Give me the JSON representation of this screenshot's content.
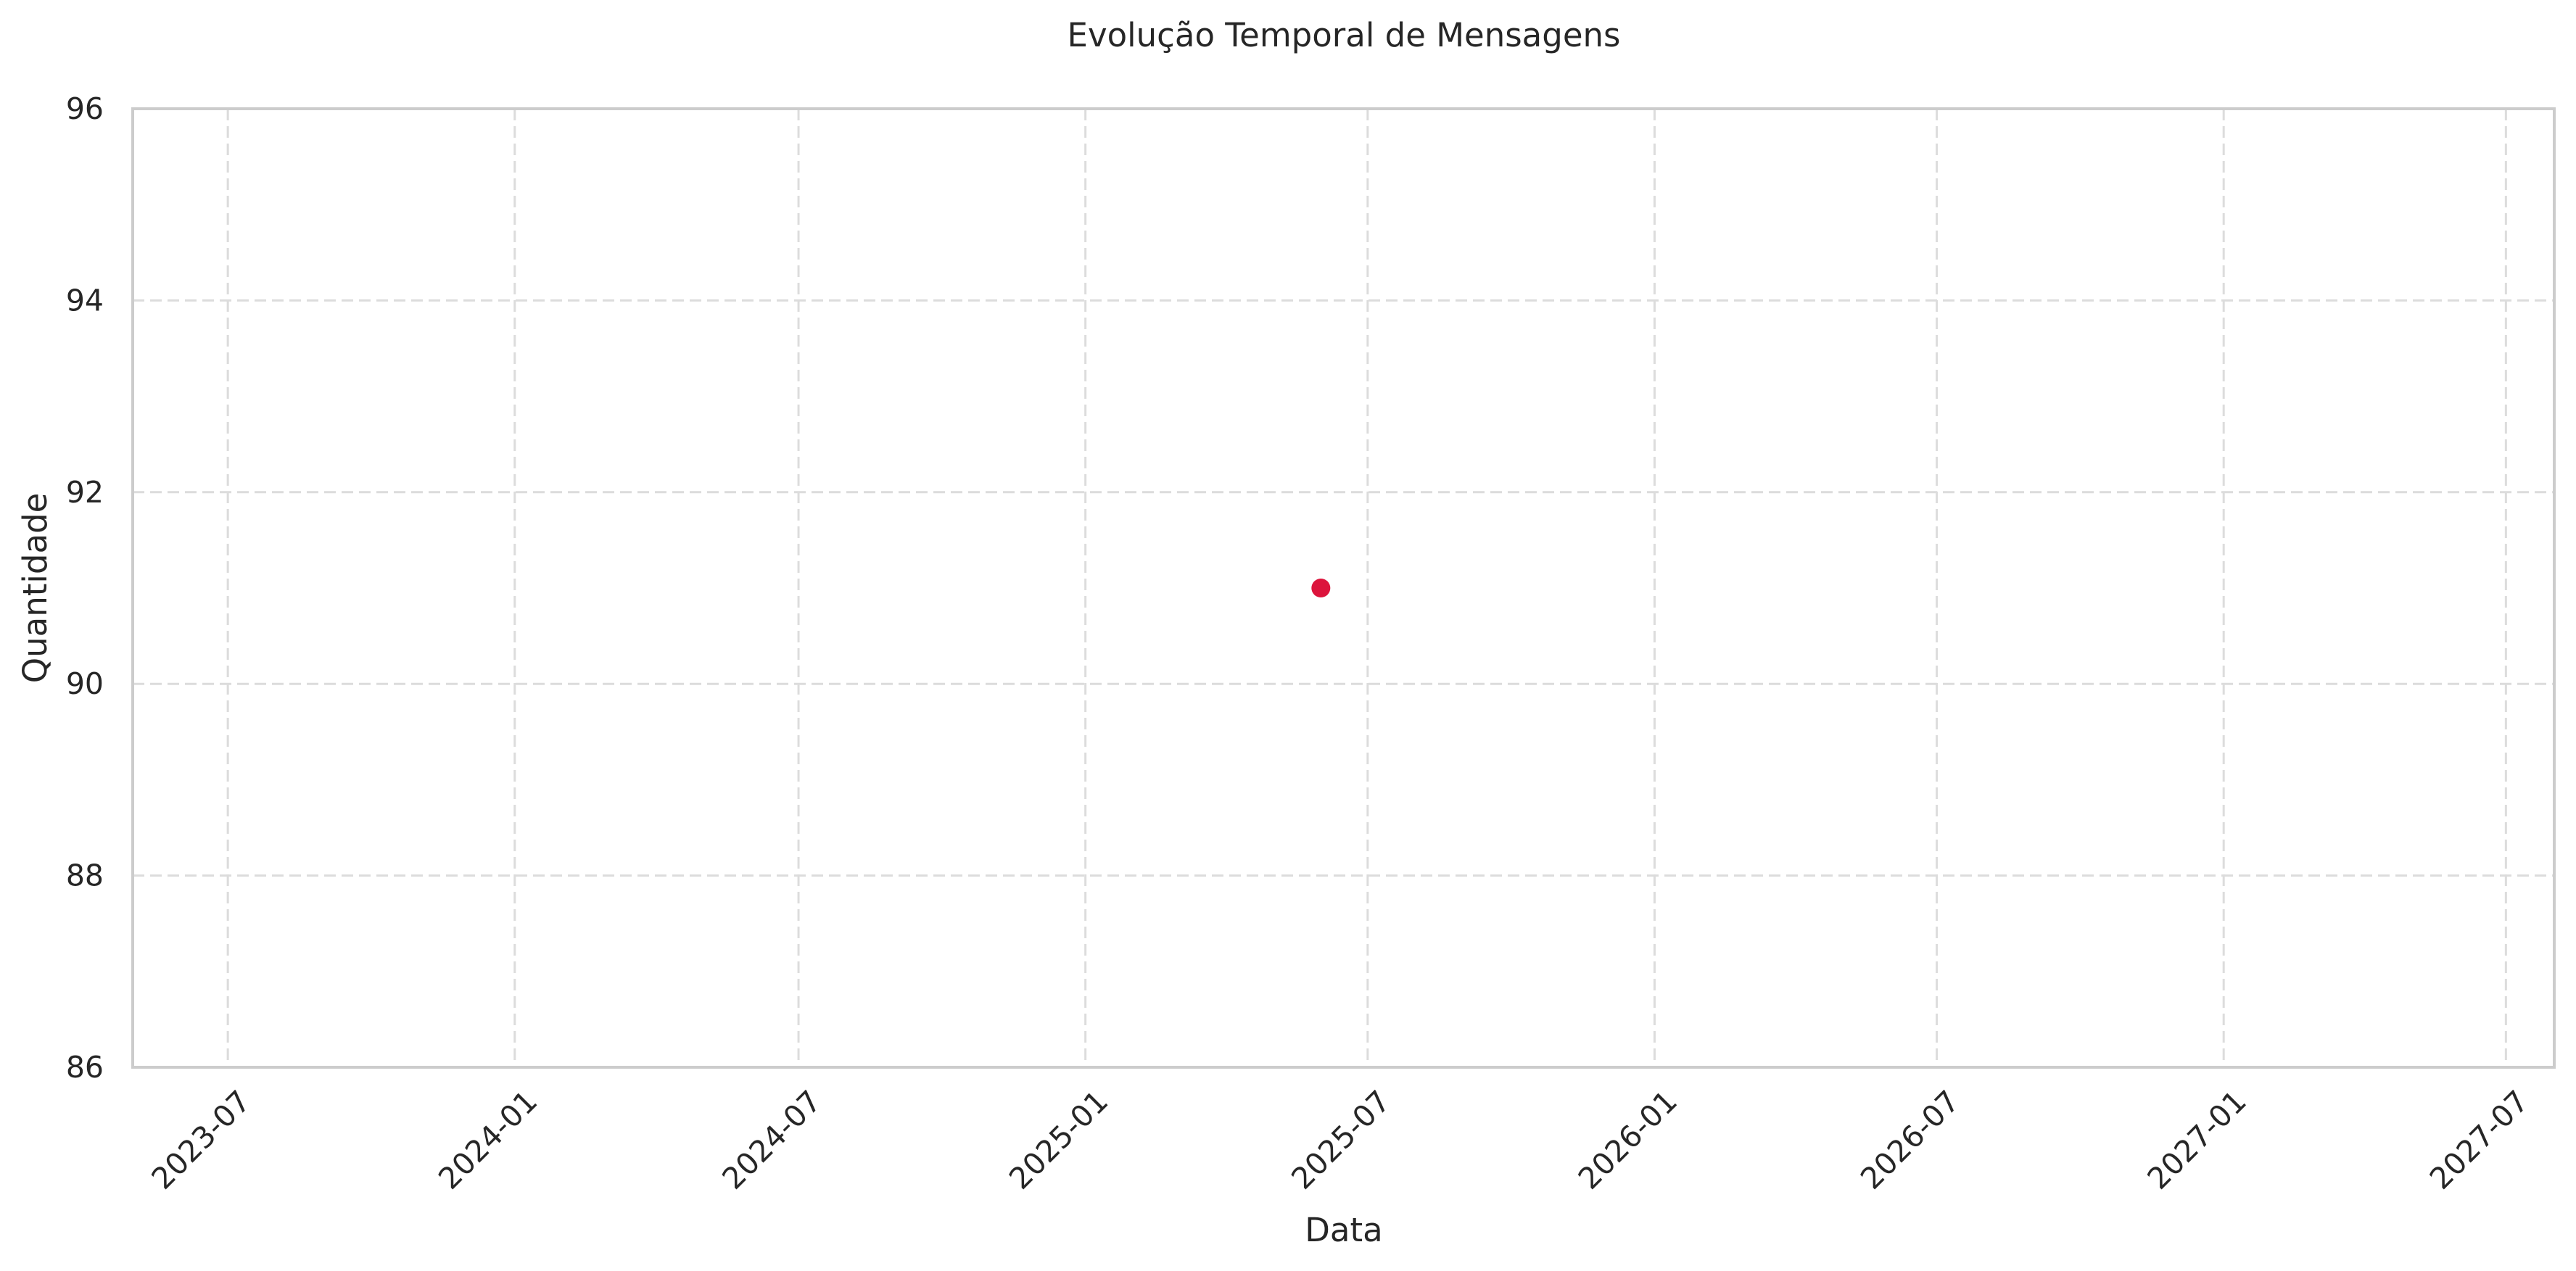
{
  "chart_data": {
    "type": "scatter",
    "title": "Evolução Temporal de Mensagens",
    "xlabel": "Data",
    "ylabel": "Quantidade",
    "x_axis_type": "date",
    "xlim": [
      "2023-05-01",
      "2027-08-01"
    ],
    "ylim": [
      86,
      96
    ],
    "x_ticks": [
      "2023-07",
      "2024-01",
      "2024-07",
      "2025-01",
      "2025-07",
      "2026-01",
      "2026-07",
      "2027-01",
      "2027-07"
    ],
    "y_ticks": [
      86,
      88,
      90,
      92,
      94,
      96
    ],
    "grid": true,
    "grid_style": "dashed",
    "legend": "none",
    "series": [
      {
        "x": [
          "2025-06-01"
        ],
        "y": [
          91
        ],
        "color": "#dc143c"
      }
    ]
  }
}
